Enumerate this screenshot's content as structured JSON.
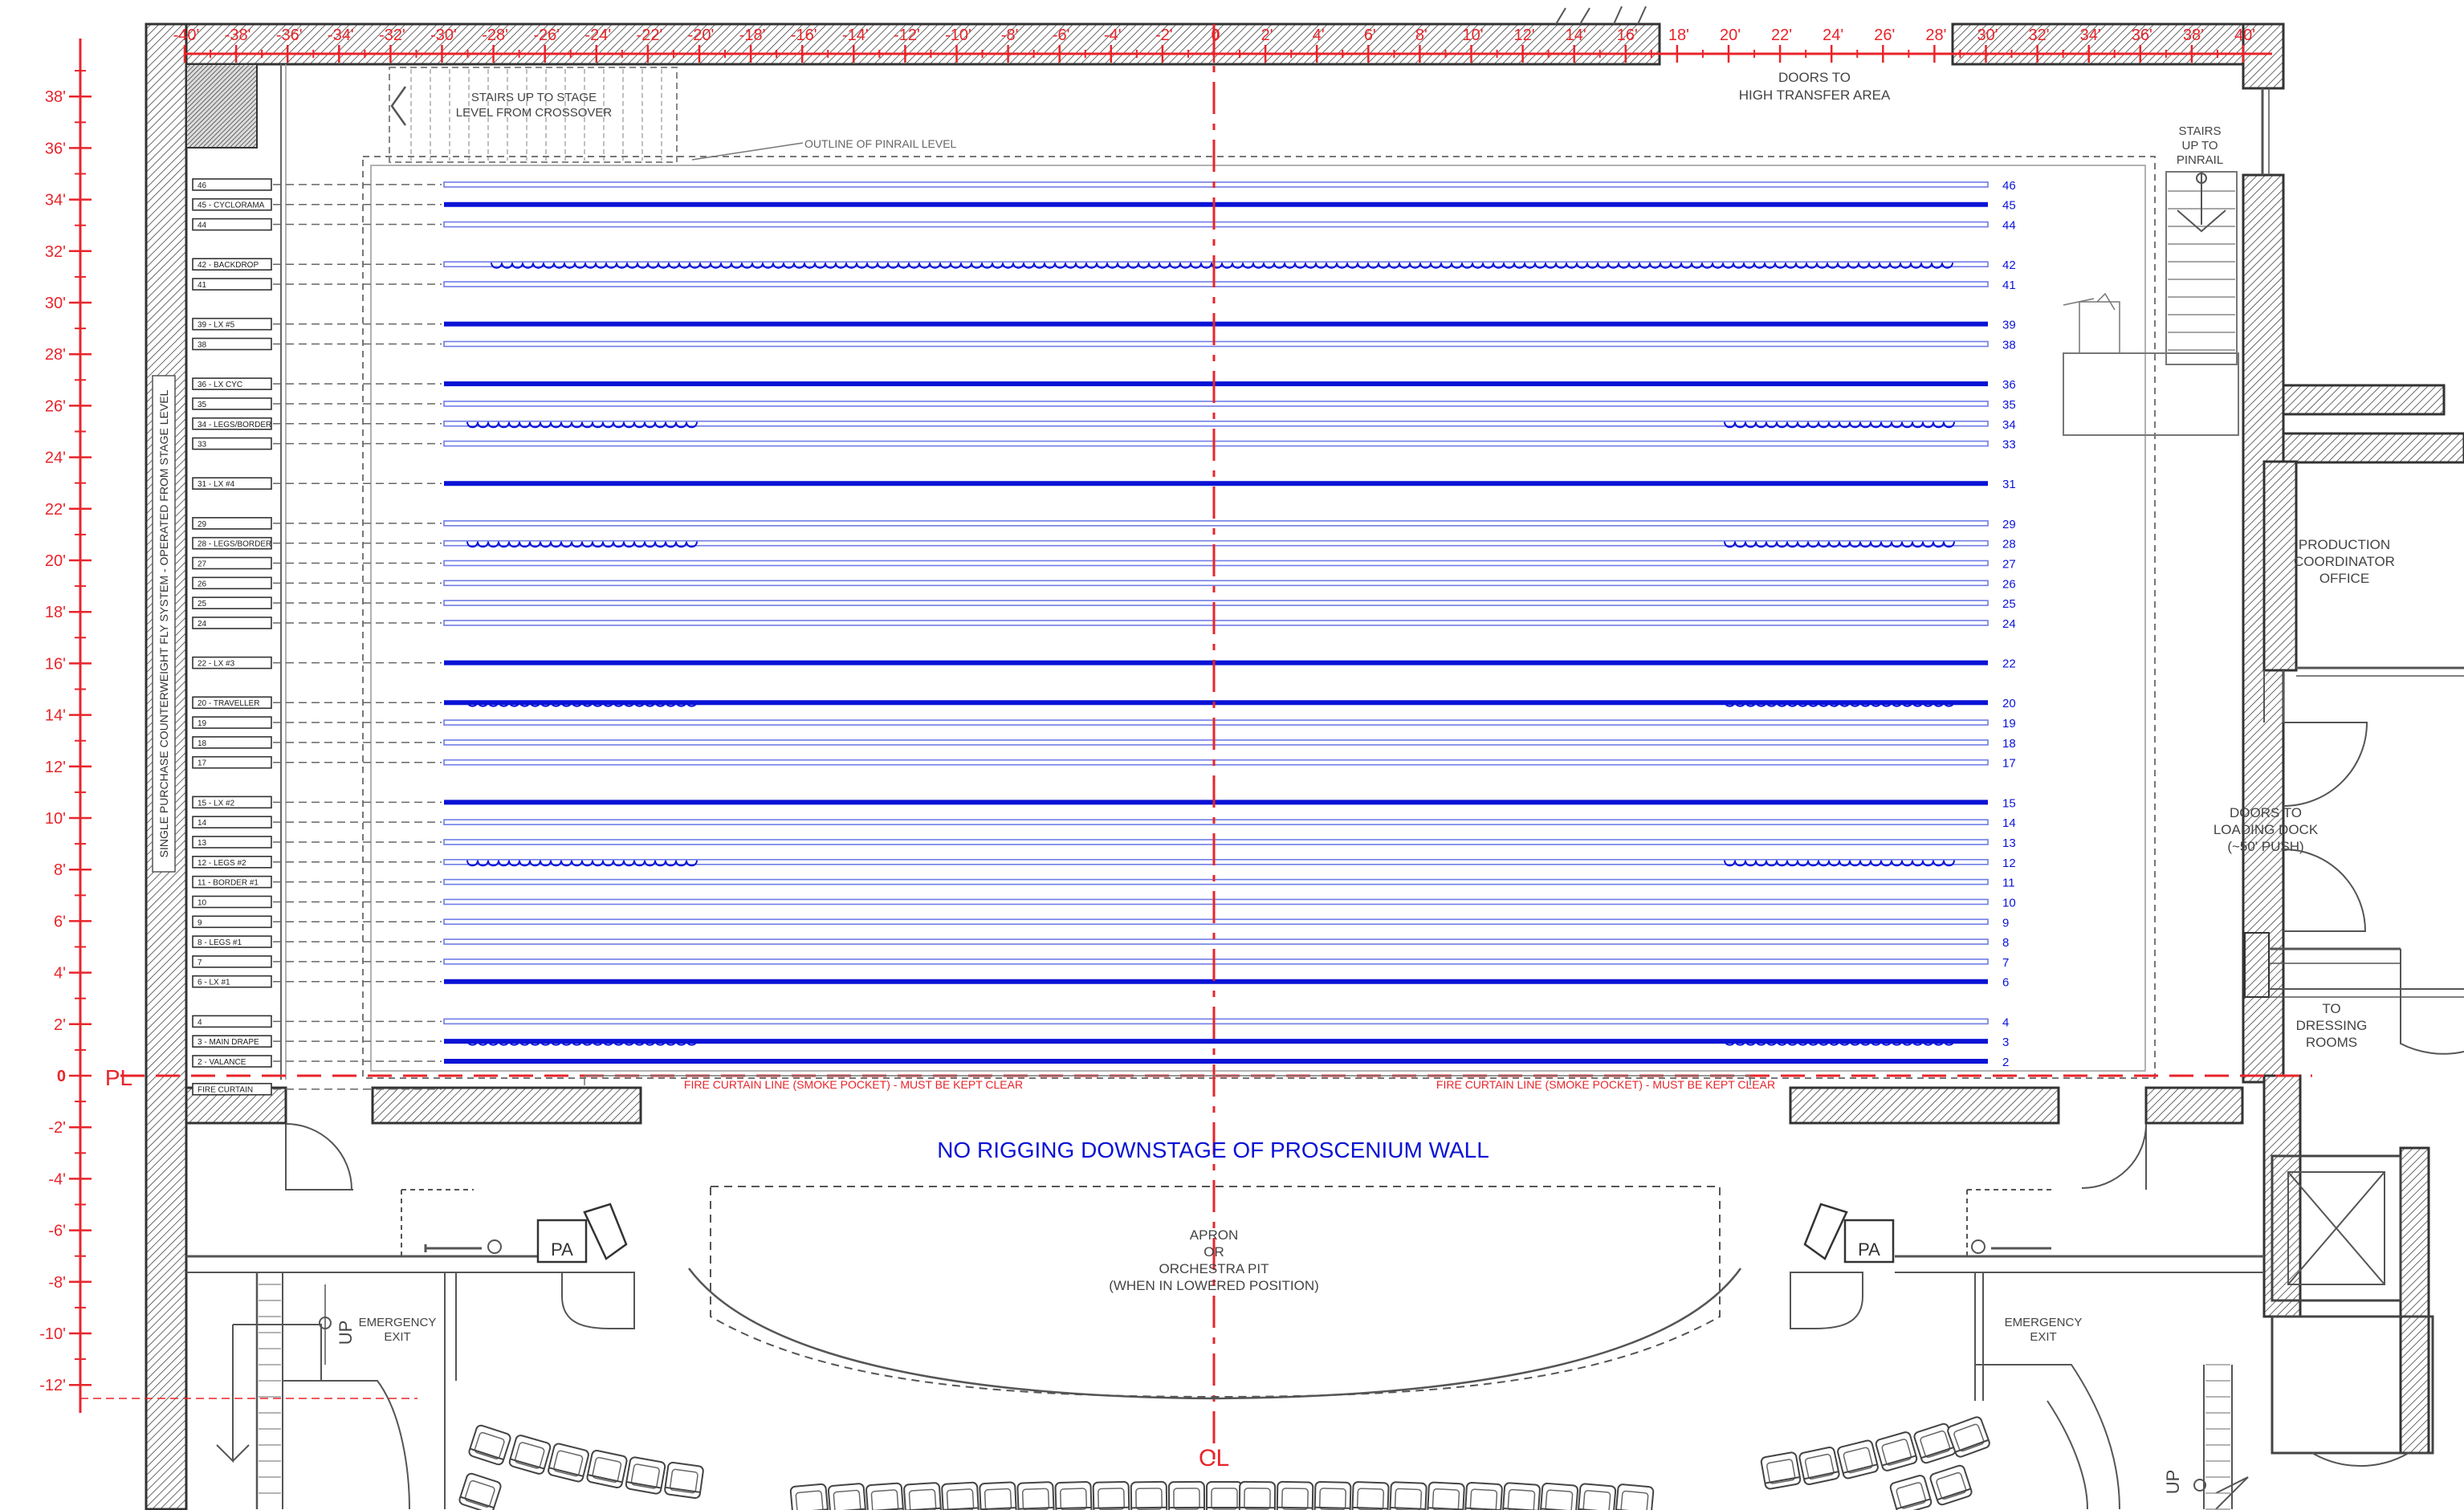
{
  "colors": {
    "wall": "#3a3a3a",
    "line": "#555555",
    "red": "#e8252b",
    "blue": "#0a12d6",
    "lightblue": "#6f7ce6",
    "grey": "#8c8c8c"
  },
  "top_scale_labels": [
    "-40'",
    "-38'",
    "-36'",
    "-34'",
    "-32'",
    "-30'",
    "-28'",
    "-26'",
    "-24'",
    "-22'",
    "-20'",
    "-18'",
    "-16'",
    "-14'",
    "-12'",
    "-10'",
    "-8'",
    "-6'",
    "-4'",
    "-2'",
    "0",
    "2'",
    "4'",
    "6'",
    "8'",
    "10'",
    "12'",
    "14'",
    "16'",
    "18'",
    "20'",
    "22'",
    "24'",
    "26'",
    "28'",
    "30'",
    "32'",
    "34'",
    "36'",
    "38'",
    "40'"
  ],
  "left_scale_labels": [
    "38'",
    "36'",
    "34'",
    "32'",
    "30'",
    "28'",
    "26'",
    "24'",
    "22'",
    "20'",
    "18'",
    "16'",
    "14'",
    "12'",
    "10'",
    "8'",
    "6'",
    "4'",
    "2'",
    "0",
    "-2'",
    "-4'",
    "-6'",
    "-8'",
    "-10'",
    "-12'"
  ],
  "plaster_line_label": "PL",
  "centerline_label": "CL",
  "linesets": [
    {
      "n": "46",
      "name": "46",
      "heavy": false,
      "curtain": "none"
    },
    {
      "n": "45",
      "name": "45 - CYCLORAMA",
      "heavy": true,
      "curtain": "none"
    },
    {
      "n": "44",
      "name": "44",
      "heavy": false,
      "curtain": "none"
    },
    {
      "n": "42",
      "name": "42 - BACKDROP",
      "heavy": false,
      "curtain": "full"
    },
    {
      "n": "41",
      "name": "41",
      "heavy": false,
      "curtain": "none"
    },
    {
      "n": "39",
      "name": "39 - LX #5",
      "heavy": true,
      "curtain": "none"
    },
    {
      "n": "38",
      "name": "38",
      "heavy": false,
      "curtain": "none"
    },
    {
      "n": "36",
      "name": "36 - LX CYC",
      "heavy": true,
      "curtain": "none"
    },
    {
      "n": "35",
      "name": "35",
      "heavy": false,
      "curtain": "none"
    },
    {
      "n": "34",
      "name": "34 - LEGS/BORDER",
      "heavy": false,
      "curtain": "legs"
    },
    {
      "n": "33",
      "name": "33",
      "heavy": false,
      "curtain": "none"
    },
    {
      "n": "31",
      "name": "31 - LX #4",
      "heavy": true,
      "curtain": "none"
    },
    {
      "n": "29",
      "name": "29",
      "heavy": false,
      "curtain": "none"
    },
    {
      "n": "28",
      "name": "28 - LEGS/BORDER",
      "heavy": false,
      "curtain": "legs"
    },
    {
      "n": "27",
      "name": "27",
      "heavy": false,
      "curtain": "none"
    },
    {
      "n": "26",
      "name": "26",
      "heavy": false,
      "curtain": "none"
    },
    {
      "n": "25",
      "name": "25",
      "heavy": false,
      "curtain": "none"
    },
    {
      "n": "24",
      "name": "24",
      "heavy": false,
      "curtain": "none"
    },
    {
      "n": "22",
      "name": "22 - LX #3",
      "heavy": true,
      "curtain": "none"
    },
    {
      "n": "20",
      "name": "20 - TRAVELLER",
      "heavy": true,
      "curtain": "legs"
    },
    {
      "n": "19",
      "name": "19",
      "heavy": false,
      "curtain": "none"
    },
    {
      "n": "18",
      "name": "18",
      "heavy": false,
      "curtain": "none"
    },
    {
      "n": "17",
      "name": "17",
      "heavy": false,
      "curtain": "none"
    },
    {
      "n": "15",
      "name": "15 - LX #2",
      "heavy": true,
      "curtain": "none"
    },
    {
      "n": "14",
      "name": "14",
      "heavy": false,
      "curtain": "none"
    },
    {
      "n": "13",
      "name": "13",
      "heavy": false,
      "curtain": "none"
    },
    {
      "n": "12",
      "name": "12 - LEGS #2",
      "heavy": false,
      "curtain": "legs"
    },
    {
      "n": "11",
      "name": "11 - BORDER #1",
      "heavy": false,
      "curtain": "none"
    },
    {
      "n": "10",
      "name": "10",
      "heavy": false,
      "curtain": "none"
    },
    {
      "n": "9",
      "name": "9",
      "heavy": false,
      "curtain": "none"
    },
    {
      "n": "8",
      "name": "8 - LEGS #1",
      "heavy": false,
      "curtain": "none"
    },
    {
      "n": "7",
      "name": "7",
      "heavy": false,
      "curtain": "none"
    },
    {
      "n": "6",
      "name": "6 - LX #1",
      "heavy": true,
      "curtain": "none"
    },
    {
      "n": "4",
      "name": "4",
      "heavy": false,
      "curtain": "none"
    },
    {
      "n": "3",
      "name": "3 - MAIN DRAPE",
      "heavy": true,
      "curtain": "legs"
    },
    {
      "n": "2",
      "name": "2 - VALANCE",
      "heavy": true,
      "curtain": "none"
    },
    {
      "n": "",
      "name": "FIRE CURTAIN",
      "heavy": false,
      "curtain": "none"
    }
  ],
  "labels": {
    "fly_system": "SINGLE PURCHASE COUNTERWEIGHT FLY SYSTEM - OPERATED FROM STAGE LEVEL",
    "stairs_crossover": [
      "STAIRS UP TO STAGE",
      "LEVEL FROM CROSSOVER"
    ],
    "pinrail_outline": "OUTLINE OF PINRAIL LEVEL",
    "doors_transfer": [
      "DOORS TO",
      "HIGH TRANSFER AREA"
    ],
    "stairs_pinrail": [
      "STAIRS",
      "UP TO",
      "PINRAIL"
    ],
    "production_office": [
      "PRODUCTION",
      "COORDINATOR",
      "OFFICE"
    ],
    "doors_loading": [
      "DOORS TO",
      "LOADING DOCK",
      "(~50' PUSH)"
    ],
    "to_dressing": [
      "TO",
      "DRESSING",
      "ROOMS"
    ],
    "fire_curtain_left": "FIRE CURTAIN LINE (SMOKE POCKET) - MUST BE KEPT CLEAR",
    "fire_curtain_right": "FIRE CURTAIN LINE (SMOKE POCKET) - MUST BE KEPT CLEAR",
    "no_rigging": "NO RIGGING DOWNSTAGE OF PROSCENIUM WALL",
    "apron": [
      "APRON",
      "OR",
      "ORCHESTRA PIT",
      "(WHEN IN LOWERED POSITION)"
    ],
    "emergency_left": [
      "EMERGENCY",
      "EXIT"
    ],
    "emergency_right": [
      "EMERGENCY",
      "EXIT"
    ],
    "pa": "PA",
    "up": "UP"
  }
}
